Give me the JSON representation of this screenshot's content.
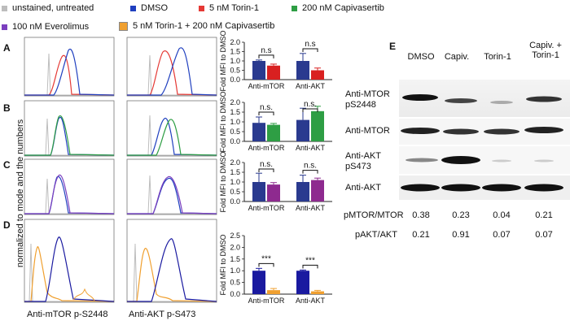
{
  "legend": [
    {
      "label": "unstained, untreated",
      "color": "#bdbdbd"
    },
    {
      "label": "DMSO",
      "color": "#1f3fbf"
    },
    {
      "label": "5 nM Torin-1",
      "color": "#e53935"
    },
    {
      "label": "200 nM Capivasertib",
      "color": "#2e9e44"
    },
    {
      "label": "100 nM Everolimus",
      "color": "#7b3fbf"
    },
    {
      "label": "5 nM Torin-1 + 200 nM Capivasertib",
      "color": "#f0a030"
    }
  ],
  "panels": [
    "A",
    "B",
    "C",
    "D",
    "E"
  ],
  "y_axis_label": "normalized to mode and the numbers",
  "x_labels": [
    "Anti-mTOR p-S2448",
    "Anti-AKT p-S473"
  ],
  "chart_data": [
    {
      "type": "bar",
      "panel": "A",
      "ylabel": "Fold MFI to DMSO",
      "categories": [
        "Anti-mTOR",
        "Anti-AKT"
      ],
      "ylim": [
        0,
        2.0
      ],
      "yticks": [
        "0.0",
        "0.5",
        "1.0",
        "1.5",
        "2.0"
      ],
      "series": [
        {
          "values": [
            1.0,
            1.0
          ],
          "err": [
            0.05,
            0.4
          ],
          "color": "#2a3a8f"
        },
        {
          "values": [
            0.75,
            0.5
          ],
          "err": [
            0.08,
            0.12
          ],
          "color": "#d92020"
        }
      ],
      "significance": [
        "n.s",
        "n.s"
      ]
    },
    {
      "type": "bar",
      "panel": "B",
      "ylabel": "Fold MFI to DMSO",
      "categories": [
        "Anti-mTOR",
        "Anti-AKT"
      ],
      "ylim": [
        0,
        2.0
      ],
      "yticks": [
        "0.0",
        "0.5",
        "1.0",
        "1.5",
        "2.0"
      ],
      "series": [
        {
          "values": [
            0.95,
            1.1
          ],
          "err": [
            0.3,
            0.6
          ],
          "color": "#2a3a8f"
        },
        {
          "values": [
            0.85,
            1.55
          ],
          "err": [
            0.07,
            0.25
          ],
          "color": "#2e9e44"
        }
      ],
      "significance": [
        "n.s.",
        "n.s."
      ]
    },
    {
      "type": "bar",
      "panel": "C",
      "ylabel": "Fold MFI to DMSO",
      "categories": [
        "Anti-mTOR",
        "Anti-AKT"
      ],
      "ylim": [
        0,
        2.0
      ],
      "yticks": [
        "0.0",
        "0.5",
        "1.0",
        "1.5",
        "2.0"
      ],
      "series": [
        {
          "values": [
            1.0,
            1.0
          ],
          "err": [
            0.45,
            0.35
          ],
          "color": "#2a3a8f"
        },
        {
          "values": [
            0.87,
            1.1
          ],
          "err": [
            0.1,
            0.1
          ],
          "color": "#8e2a8f"
        }
      ],
      "significance": [
        "n.s.",
        "n.s."
      ]
    },
    {
      "type": "bar",
      "panel": "D",
      "ylabel": "Fold MFI to DMSO",
      "categories": [
        "Anti-mTOR",
        "Anti-AKT"
      ],
      "ylim": [
        0,
        2.5
      ],
      "yticks": [
        "0.0",
        "0.5",
        "1.0",
        "1.5",
        "2.0",
        "2.5"
      ],
      "series": [
        {
          "values": [
            1.0,
            1.0
          ],
          "err": [
            0.1,
            0.03
          ],
          "color": "#1a1aa0"
        },
        {
          "values": [
            0.17,
            0.12
          ],
          "err": [
            0.07,
            0.04
          ],
          "color": "#f0a030"
        }
      ],
      "significance": [
        "***",
        "***"
      ]
    }
  ],
  "blot": {
    "lanes": [
      "DMSO",
      "Capiv.",
      "Torin-1",
      "Capiv. +\nTorin-1"
    ],
    "rows": [
      "Anti-MTOR\npS2448",
      "Anti-MTOR",
      "Anti-AKT\npS473",
      "Anti-AKT"
    ],
    "ratios": [
      {
        "label": "pMTOR/MTOR",
        "values": [
          "0.38",
          "0.23",
          "0.04",
          "0.21"
        ]
      },
      {
        "label": "pAKT/AKT",
        "values": [
          "0.21",
          "0.91",
          "0.07",
          "0.07"
        ]
      }
    ]
  }
}
